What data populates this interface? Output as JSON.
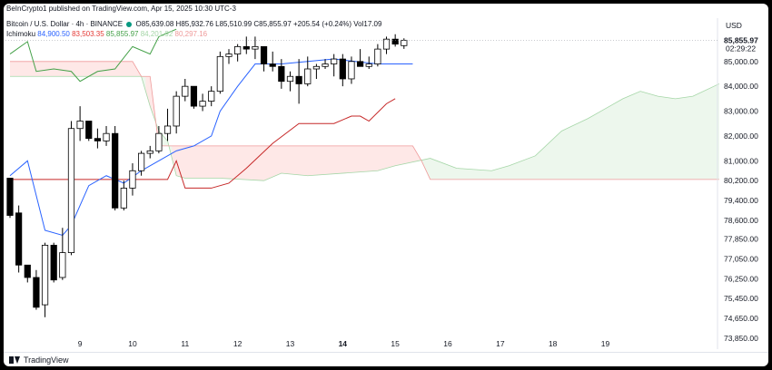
{
  "header": {
    "published_by": "BeInCrypto1 published on TradingView.com, Apr 15, 2025 10:30 UTC-3",
    "currency": "USD",
    "symbol": "Bitcoin / U.S. Dollar · 4h · BINANCE",
    "ohlc": "O85,639.08 H85,932.76 L85,510.99 C85,855.97 +205.54 (+0.24%) Vol17.09",
    "indicator_name": "Ichimoku",
    "indicator_values": [
      {
        "text": "84,900.50",
        "color": "#2962ff"
      },
      {
        "text": "83,503.35",
        "color": "#e53935"
      },
      {
        "text": "85,855.97",
        "color": "#43a047"
      },
      {
        "text": "84,201.92",
        "color": "#a5d6a7"
      },
      {
        "text": "80,297.16",
        "color": "#ef9a9a"
      }
    ]
  },
  "footer": {
    "brand": "TradingView"
  },
  "price_labels": {
    "last": "85,855.97",
    "countdown": "02:29:22"
  },
  "colors": {
    "up_candle": "#ffffff",
    "down_candle": "#000000",
    "wick": "#000000",
    "tenkan": "#2962ff",
    "kijun": "#c62828",
    "chikou": "#43a047",
    "span_a": "#a5d6a7",
    "span_b": "#ef9a9a",
    "cloud_bull": "rgba(76,175,80,0.10)",
    "cloud_bear": "rgba(244,67,54,0.12)"
  },
  "chart_data": {
    "type": "candlestick",
    "y_ticks": [
      73850,
      74650,
      75450,
      76250,
      77050,
      77850,
      78600,
      79400,
      80200,
      81000,
      82000,
      83000,
      84000,
      85000
    ],
    "y_tick_labels": [
      "73,850.00",
      "74,650.00",
      "75,450.00",
      "76,250.00",
      "77,050.00",
      "77,850.00",
      "78,600.00",
      "79,400.00",
      "80,200.00",
      "81,000.00",
      "82,000.00",
      "83,000.00",
      "84,000.00",
      "85,000.00"
    ],
    "x_ticks": [
      {
        "x": 8,
        "label": "9"
      },
      {
        "x": 14,
        "label": "10"
      },
      {
        "x": 20,
        "label": "11"
      },
      {
        "x": 26,
        "label": "12"
      },
      {
        "x": 32,
        "label": "13"
      },
      {
        "x": 38,
        "label": "14",
        "bold": true
      },
      {
        "x": 44,
        "label": "15"
      },
      {
        "x": 50,
        "label": "16"
      },
      {
        "x": 56,
        "label": "17"
      },
      {
        "x": 62,
        "label": "18"
      },
      {
        "x": 68,
        "label": "19"
      }
    ],
    "candles": [
      {
        "o": 80300,
        "h": 80300,
        "l": 78700,
        "c": 78800
      },
      {
        "o": 78900,
        "h": 79200,
        "l": 76500,
        "c": 76800
      },
      {
        "o": 76800,
        "h": 76800,
        "l": 76100,
        "c": 76300
      },
      {
        "o": 76300,
        "h": 76600,
        "l": 75000,
        "c": 75100
      },
      {
        "o": 75200,
        "h": 77700,
        "l": 74700,
        "c": 77600
      },
      {
        "o": 77600,
        "h": 77700,
        "l": 76100,
        "c": 76200
      },
      {
        "o": 76300,
        "h": 78300,
        "l": 76200,
        "c": 77300
      },
      {
        "o": 77300,
        "h": 82600,
        "l": 77200,
        "c": 82300
      },
      {
        "o": 82300,
        "h": 83200,
        "l": 81800,
        "c": 82600
      },
      {
        "o": 82600,
        "h": 82600,
        "l": 81800,
        "c": 81900
      },
      {
        "o": 81900,
        "h": 82300,
        "l": 81500,
        "c": 81800
      },
      {
        "o": 81800,
        "h": 82400,
        "l": 81600,
        "c": 82100
      },
      {
        "o": 82100,
        "h": 82400,
        "l": 79000,
        "c": 79100
      },
      {
        "o": 79100,
        "h": 80200,
        "l": 79000,
        "c": 79900
      },
      {
        "o": 79900,
        "h": 80900,
        "l": 79600,
        "c": 80600
      },
      {
        "o": 80600,
        "h": 81400,
        "l": 80400,
        "c": 81300
      },
      {
        "o": 81300,
        "h": 81600,
        "l": 81100,
        "c": 81400
      },
      {
        "o": 81400,
        "h": 82400,
        "l": 81300,
        "c": 82100
      },
      {
        "o": 82100,
        "h": 83100,
        "l": 81800,
        "c": 82400
      },
      {
        "o": 82400,
        "h": 83800,
        "l": 82100,
        "c": 83600
      },
      {
        "o": 83600,
        "h": 84300,
        "l": 83400,
        "c": 84000
      },
      {
        "o": 84000,
        "h": 84000,
        "l": 83100,
        "c": 83200
      },
      {
        "o": 83200,
        "h": 83700,
        "l": 83000,
        "c": 83400
      },
      {
        "o": 83400,
        "h": 84000,
        "l": 83200,
        "c": 83800
      },
      {
        "o": 83800,
        "h": 85400,
        "l": 83700,
        "c": 85200
      },
      {
        "o": 85200,
        "h": 85500,
        "l": 84900,
        "c": 85300
      },
      {
        "o": 85300,
        "h": 85700,
        "l": 85000,
        "c": 85600
      },
      {
        "o": 85600,
        "h": 86000,
        "l": 85300,
        "c": 85500
      },
      {
        "o": 85500,
        "h": 86000,
        "l": 85100,
        "c": 85600
      },
      {
        "o": 85600,
        "h": 85600,
        "l": 84600,
        "c": 84900
      },
      {
        "o": 84900,
        "h": 85400,
        "l": 84600,
        "c": 84800
      },
      {
        "o": 84800,
        "h": 85100,
        "l": 83900,
        "c": 84200
      },
      {
        "o": 84200,
        "h": 84600,
        "l": 83800,
        "c": 84400
      },
      {
        "o": 84400,
        "h": 85100,
        "l": 83300,
        "c": 84100
      },
      {
        "o": 84100,
        "h": 85200,
        "l": 84000,
        "c": 84700
      },
      {
        "o": 84700,
        "h": 84900,
        "l": 84300,
        "c": 84800
      },
      {
        "o": 84800,
        "h": 85100,
        "l": 84700,
        "c": 84900
      },
      {
        "o": 84900,
        "h": 85300,
        "l": 84400,
        "c": 85100
      },
      {
        "o": 85100,
        "h": 85300,
        "l": 84000,
        "c": 84300
      },
      {
        "o": 84300,
        "h": 85200,
        "l": 84100,
        "c": 85000
      },
      {
        "o": 85000,
        "h": 85500,
        "l": 84900,
        "c": 84800
      },
      {
        "o": 84800,
        "h": 85200,
        "l": 84700,
        "c": 84900
      },
      {
        "o": 84900,
        "h": 85700,
        "l": 84800,
        "c": 85500
      },
      {
        "o": 85500,
        "h": 86000,
        "l": 85300,
        "c": 85900
      },
      {
        "o": 85900,
        "h": 86100,
        "l": 85600,
        "c": 85700
      },
      {
        "o": 85639,
        "h": 85933,
        "l": 85511,
        "c": 85856
      }
    ],
    "tenkan": [
      [
        0,
        80400
      ],
      [
        2,
        81000
      ],
      [
        4,
        78200
      ],
      [
        6,
        78000
      ],
      [
        7,
        78400
      ],
      [
        9,
        80000
      ],
      [
        11,
        80400
      ],
      [
        13,
        80100
      ],
      [
        15,
        80600
      ],
      [
        17,
        81000
      ],
      [
        19,
        81400
      ],
      [
        21,
        81600
      ],
      [
        23,
        82000
      ],
      [
        24,
        83000
      ],
      [
        26,
        84000
      ],
      [
        28,
        84900
      ],
      [
        31,
        84900
      ],
      [
        34,
        85000
      ],
      [
        37,
        85100
      ],
      [
        42,
        84900
      ],
      [
        44,
        84900
      ],
      [
        46,
        84900
      ]
    ],
    "kijun": [
      [
        0,
        80250
      ],
      [
        13,
        80250
      ],
      [
        18,
        80250
      ],
      [
        19,
        81000
      ],
      [
        20,
        79900
      ],
      [
        23,
        79900
      ],
      [
        25,
        80100
      ],
      [
        27,
        80700
      ],
      [
        30,
        81700
      ],
      [
        33,
        82500
      ],
      [
        37,
        82500
      ],
      [
        39,
        82800
      ],
      [
        40,
        82800
      ],
      [
        41,
        82600
      ],
      [
        43,
        83300
      ],
      [
        44,
        83500
      ]
    ],
    "chikou": [
      [
        0,
        85300
      ],
      [
        2,
        85800
      ],
      [
        3,
        84600
      ],
      [
        5,
        84700
      ],
      [
        7,
        84600
      ],
      [
        8,
        84200
      ],
      [
        10,
        84600
      ],
      [
        12,
        84700
      ],
      [
        14,
        85600
      ],
      [
        16,
        85300
      ],
      [
        17,
        86000
      ],
      [
        19,
        86300
      ]
    ],
    "span_a": [
      [
        0,
        84400
      ],
      [
        14,
        84400
      ],
      [
        15,
        84400
      ],
      [
        16,
        83200
      ],
      [
        17,
        82200
      ],
      [
        18,
        81800
      ],
      [
        19,
        80400
      ],
      [
        20,
        80300
      ],
      [
        24,
        80300
      ],
      [
        29,
        80200
      ],
      [
        31,
        80500
      ],
      [
        34,
        80400
      ],
      [
        42,
        80600
      ],
      [
        44,
        80800
      ],
      [
        48,
        81100
      ],
      [
        51,
        80700
      ],
      [
        55,
        80600
      ],
      [
        57,
        80800
      ],
      [
        60,
        81200
      ],
      [
        63,
        82200
      ],
      [
        66,
        82700
      ],
      [
        68,
        83100
      ],
      [
        70,
        83500
      ],
      [
        72,
        83800
      ],
      [
        74,
        83600
      ],
      [
        76,
        83500
      ],
      [
        78,
        83600
      ],
      [
        81,
        84100
      ]
    ],
    "span_b": [
      [
        0,
        85000
      ],
      [
        14,
        85000
      ],
      [
        15,
        84400
      ],
      [
        16,
        84400
      ],
      [
        17,
        81600
      ],
      [
        18,
        81600
      ],
      [
        19,
        81600
      ],
      [
        22,
        81600
      ],
      [
        28,
        81600
      ],
      [
        29,
        81600
      ],
      [
        32,
        81600
      ],
      [
        36,
        81600
      ],
      [
        38,
        81600
      ],
      [
        42,
        81600
      ],
      [
        44,
        81600
      ],
      [
        46,
        81600
      ],
      [
        47,
        81000
      ],
      [
        48,
        80250
      ],
      [
        81,
        80250
      ]
    ],
    "x_max": 82,
    "ylim": [
      73450,
      86600
    ]
  }
}
